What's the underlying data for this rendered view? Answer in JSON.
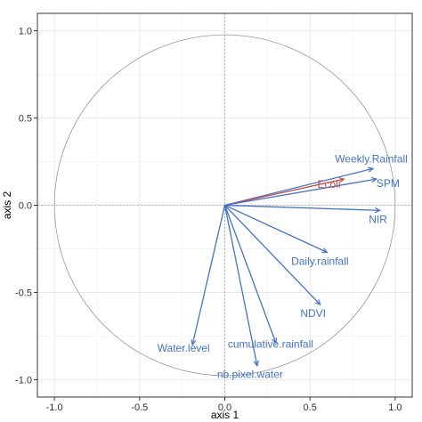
{
  "chart_data": {
    "type": "scatter",
    "subtype": "correlation-circle-biplot",
    "xlabel": "axis 1",
    "ylabel": "axis 2",
    "xlim": [
      -1.1,
      1.1
    ],
    "ylim": [
      -1.1,
      1.1
    ],
    "x_ticks": [
      "-1.0",
      "-0.5",
      "0.0",
      "0.5",
      "1.0"
    ],
    "y_ticks": [
      "-1.0",
      "-0.5",
      "0.0",
      "0.5",
      "1.0"
    ],
    "grid": true,
    "unit_circle": true,
    "colors": {
      "variables": "#4472C4",
      "supplementary": "#C0504D",
      "circle": "#999999"
    },
    "vectors": [
      {
        "name": "Weekly.Rainfall",
        "x": 0.87,
        "y": 0.21,
        "color": "#4472C4"
      },
      {
        "name": "Ecoli",
        "x": 0.7,
        "y": 0.15,
        "color": "#C0504D"
      },
      {
        "name": "SPM",
        "x": 0.89,
        "y": 0.15,
        "color": "#4472C4"
      },
      {
        "name": "NIR",
        "x": 0.91,
        "y": -0.03,
        "color": "#4472C4"
      },
      {
        "name": "Daily.rainfall",
        "x": 0.6,
        "y": -0.27,
        "color": "#4472C4"
      },
      {
        "name": "NDVI",
        "x": 0.56,
        "y": -0.57,
        "color": "#4472C4"
      },
      {
        "name": "Water.level",
        "x": -0.19,
        "y": -0.8,
        "color": "#4472C4"
      },
      {
        "name": "cumulative.rainfall",
        "x": 0.3,
        "y": -0.79,
        "color": "#4472C4"
      },
      {
        "name": "nb.pixel.water",
        "x": 0.19,
        "y": -0.92,
        "color": "#4472C4"
      }
    ]
  }
}
